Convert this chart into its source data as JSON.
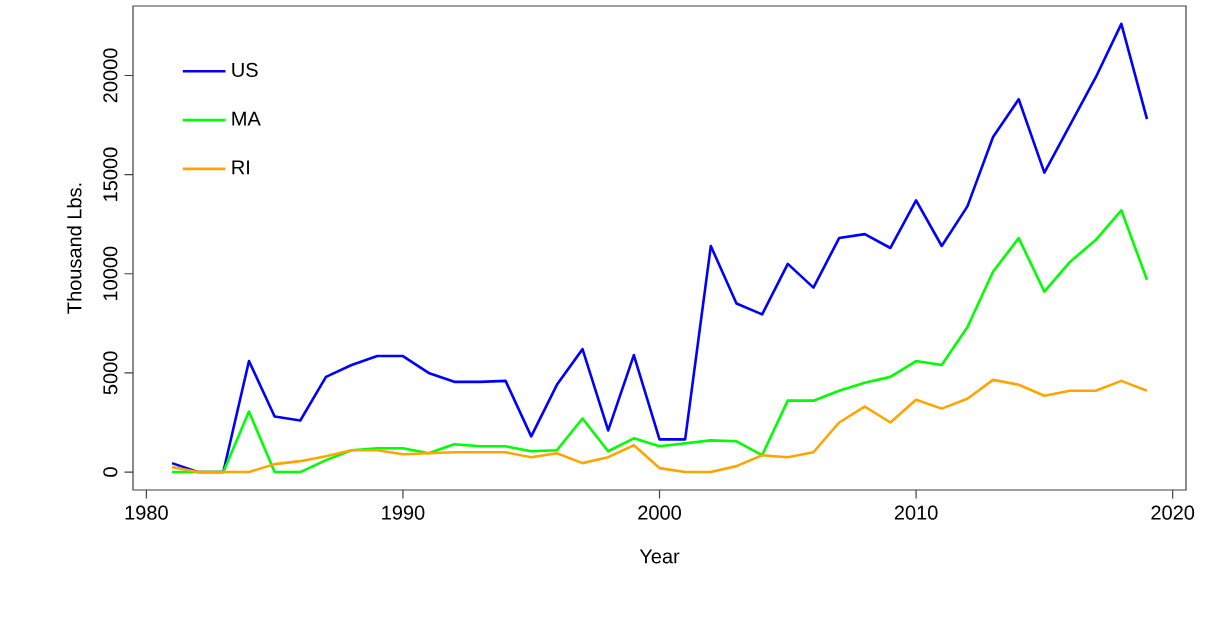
{
  "chart_data": {
    "type": "line",
    "xlabel": "Year",
    "ylabel": "Thousand Lbs.",
    "x": [
      1981,
      1982,
      1983,
      1984,
      1985,
      1986,
      1987,
      1988,
      1989,
      1990,
      1991,
      1992,
      1993,
      1994,
      1995,
      1996,
      1997,
      1998,
      1999,
      2000,
      2001,
      2002,
      2003,
      2004,
      2005,
      2006,
      2007,
      2008,
      2009,
      2010,
      2011,
      2012,
      2013,
      2014,
      2015,
      2016,
      2017,
      2018,
      2019
    ],
    "series": [
      {
        "name": "US",
        "color": "#0000ff",
        "values": [
          450,
          0,
          0,
          5600,
          2800,
          2600,
          4800,
          5400,
          5850,
          5850,
          5000,
          4550,
          4550,
          4600,
          1800,
          4400,
          6200,
          2100,
          5900,
          1650,
          1650,
          11400,
          8500,
          7950,
          10500,
          9300,
          11800,
          12000,
          11300,
          13700,
          11400,
          13400,
          16900,
          18800,
          15100,
          17500,
          19900,
          22600,
          17800
        ]
      },
      {
        "name": "MA",
        "color": "#00ff00",
        "values": [
          0,
          0,
          0,
          3050,
          0,
          0,
          600,
          1100,
          1200,
          1200,
          950,
          1400,
          1300,
          1300,
          1050,
          1100,
          2700,
          1050,
          1700,
          1300,
          1450,
          1600,
          1550,
          850,
          3600,
          3600,
          4100,
          4500,
          4800,
          5600,
          5400,
          7300,
          10100,
          11800,
          9100,
          10600,
          11700,
          13200,
          9700
        ]
      },
      {
        "name": "RI",
        "color": "#ffa500",
        "values": [
          250,
          0,
          0,
          0,
          400,
          550,
          800,
          1100,
          1100,
          900,
          950,
          1000,
          1000,
          1000,
          750,
          950,
          450,
          750,
          1350,
          200,
          0,
          0,
          300,
          850,
          750,
          1000,
          2500,
          3300,
          2500,
          3650,
          3200,
          3700,
          4650,
          4400,
          3850,
          4100,
          4100,
          4600,
          4100
        ]
      }
    ],
    "xlim": [
      1979.48,
      2020.52
    ],
    "ylim": [
      -904,
      23504
    ],
    "xticks": [
      1980,
      1990,
      2000,
      2010,
      2020
    ],
    "yticks": [
      0,
      5000,
      10000,
      15000,
      20000
    ],
    "legend": "top left",
    "grid": false,
    "marker": "none",
    "line_style": "solid"
  }
}
